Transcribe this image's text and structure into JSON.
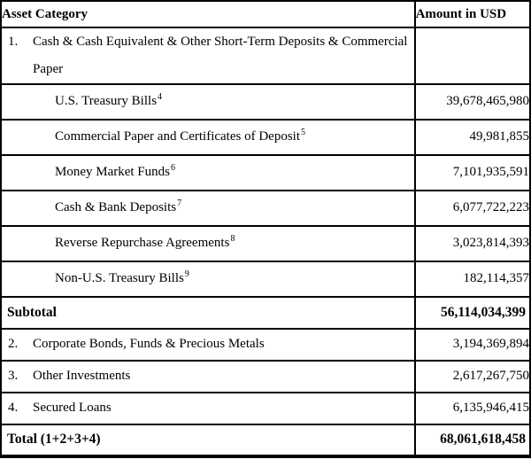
{
  "colors": {
    "border": "#000000",
    "text": "#000000",
    "background": "#ffffff"
  },
  "header": {
    "category": "Asset Category",
    "amount": "Amount in USD"
  },
  "rows": [
    {
      "num": "1.",
      "label": "Cash & Cash Equivalent & Other Short-Term Deposits & Commercial Paper",
      "amount": ""
    },
    {
      "label": "U.S. Treasury Bills",
      "sup": "4",
      "amount": "39,678,465,980"
    },
    {
      "label": "Commercial Paper and Certificates of Deposit",
      "sup": "5",
      "amount": "49,981,855"
    },
    {
      "label": "Money Market Funds",
      "sup": "6",
      "amount": "7,101,935,591"
    },
    {
      "label": "Cash & Bank Deposits",
      "sup": "7",
      "amount": "6,077,722,223"
    },
    {
      "label": "Reverse Repurchase Agreements",
      "sup": "8",
      "amount": "3,023,814,393"
    },
    {
      "label": "Non-U.S. Treasury Bills",
      "sup": "9",
      "amount": "182,114,357"
    },
    {
      "label": "Subtotal",
      "amount": "56,114,034,399"
    },
    {
      "num": "2.",
      "label": "Corporate Bonds, Funds & Precious Metals",
      "amount": "3,194,369,894"
    },
    {
      "num": "3.",
      "label": "Other Investments",
      "amount": "2,617,267,750"
    },
    {
      "num": "4.",
      "label": "Secured Loans",
      "amount": "6,135,946,415"
    },
    {
      "label": "Total (1+2+3+4)",
      "amount": "68,061,618,458"
    }
  ]
}
